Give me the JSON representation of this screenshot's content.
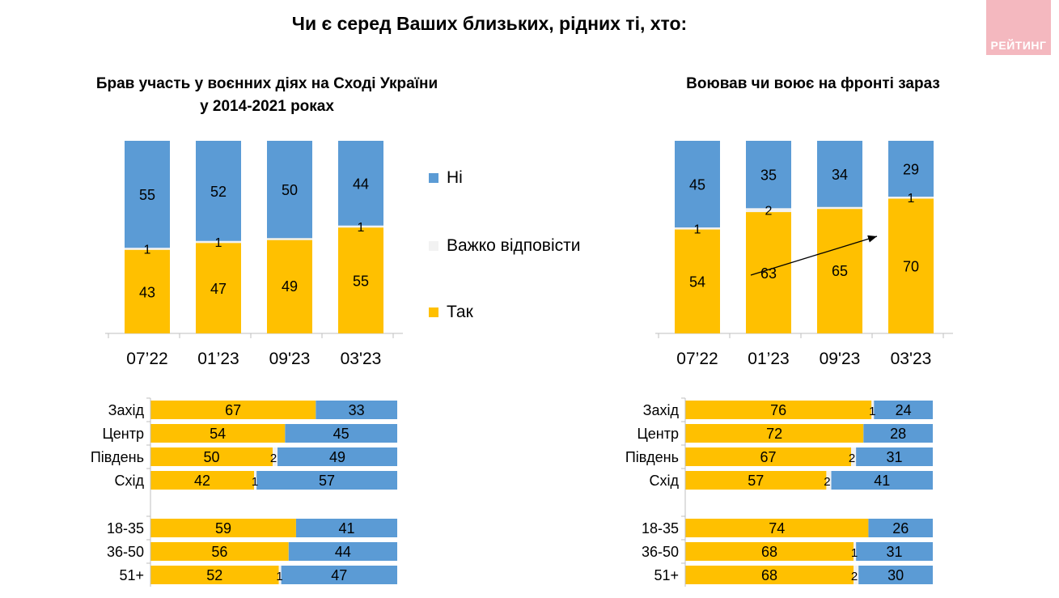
{
  "title": "Чи є серед Ваших близьких, рідних ті, хто:",
  "brand": "РЕЙТИНГ",
  "colors": {
    "yes": "#FFC000",
    "hard": "#F2F2F2",
    "no": "#5B9BD5"
  },
  "legend": {
    "no": "Ні",
    "hard": "Важко відповісти",
    "yes": "Так"
  },
  "chart_data": [
    {
      "type": "bar",
      "stacked": true,
      "title": "Брав участь у воєнних діях на Сході України у 2014-2021 роках",
      "title_lines": [
        "Брав участь у воєнних діях на Сході України",
        "у 2014-2021 роках"
      ],
      "categories": [
        "07’22",
        "01’23",
        "09'23",
        "03'23"
      ],
      "series": [
        {
          "name": "Так",
          "values": [
            43,
            47,
            49,
            55
          ]
        },
        {
          "name": "Важко відповісти",
          "values": [
            1,
            1,
            0,
            1
          ]
        },
        {
          "name": "Ні",
          "values": [
            55,
            52,
            50,
            44
          ]
        }
      ],
      "ylim": [
        0,
        100
      ]
    },
    {
      "type": "bar",
      "stacked": true,
      "title": "Воював чи воює на фронті зараз",
      "title_lines": [
        "Воював чи воює на фронті зараз"
      ],
      "categories": [
        "07’22",
        "01’23",
        "09'23",
        "03'23"
      ],
      "series": [
        {
          "name": "Так",
          "values": [
            54,
            63,
            65,
            70
          ]
        },
        {
          "name": "Важко відповісти",
          "values": [
            1,
            2,
            0,
            1
          ]
        },
        {
          "name": "Ні",
          "values": [
            45,
            35,
            34,
            29
          ]
        }
      ],
      "ylim": [
        0,
        100
      ],
      "annotation": "trend-arrow"
    },
    {
      "type": "bar",
      "orientation": "horizontal",
      "stacked": true,
      "groups": [
        {
          "categories": [
            "Захід",
            "Центр",
            "Південь",
            "Схід"
          ],
          "yes": [
            67,
            54,
            50,
            42
          ],
          "hard": [
            0,
            0,
            2,
            1
          ],
          "no": [
            33,
            45,
            49,
            57
          ]
        },
        {
          "categories": [
            "18-35",
            "36-50",
            "51+"
          ],
          "yes": [
            59,
            56,
            52
          ],
          "hard": [
            0,
            0,
            1
          ],
          "no": [
            41,
            44,
            47
          ]
        }
      ]
    },
    {
      "type": "bar",
      "orientation": "horizontal",
      "stacked": true,
      "groups": [
        {
          "categories": [
            "Захід",
            "Центр",
            "Південь",
            "Схід"
          ],
          "yes": [
            76,
            72,
            67,
            57
          ],
          "hard": [
            1,
            0,
            2,
            2
          ],
          "no": [
            24,
            28,
            31,
            41
          ]
        },
        {
          "categories": [
            "18-35",
            "36-50",
            "51+"
          ],
          "yes": [
            74,
            68,
            68
          ],
          "hard": [
            0,
            1,
            2
          ],
          "no": [
            26,
            31,
            30
          ]
        }
      ]
    }
  ]
}
